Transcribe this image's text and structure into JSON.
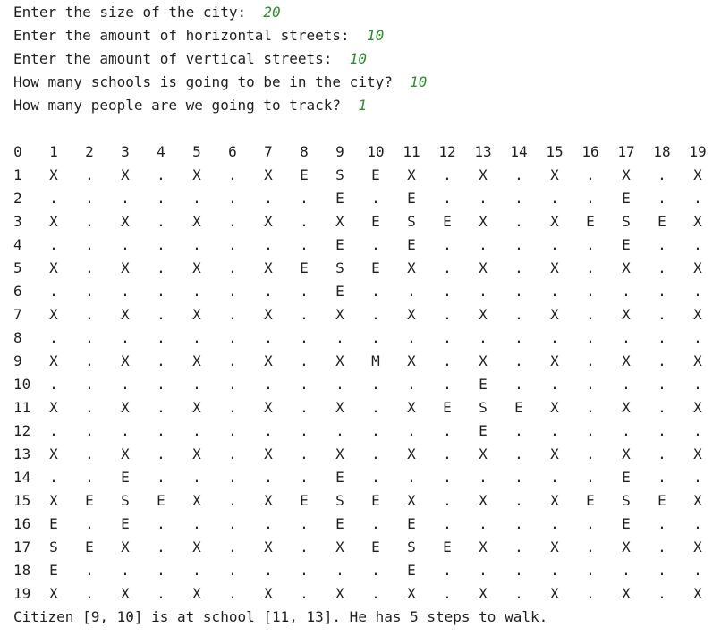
{
  "prompts": [
    {
      "question": "Enter the size of the city:  ",
      "answer": "20"
    },
    {
      "question": "Enter the amount of horizontal streets:  ",
      "answer": "10"
    },
    {
      "question": "Enter the amount of vertical streets:  ",
      "answer": "10"
    },
    {
      "question": "How many schools is going to be in the city?  ",
      "answer": "10"
    },
    {
      "question": "How many people are we going to track?  ",
      "answer": "1"
    }
  ],
  "grid": {
    "header": [
      "0",
      "1",
      "2",
      "3",
      "4",
      "5",
      "6",
      "7",
      "8",
      "9",
      "10",
      "11",
      "12",
      "13",
      "14",
      "15",
      "16",
      "17",
      "18",
      "19"
    ],
    "rows": [
      {
        "label": "1",
        "cells": [
          "X",
          ".",
          "X",
          ".",
          "X",
          ".",
          "X",
          "E",
          "S",
          "E",
          "X",
          ".",
          "X",
          ".",
          "X",
          ".",
          "X",
          ".",
          "X"
        ]
      },
      {
        "label": "2",
        "cells": [
          ".",
          ".",
          ".",
          ".",
          ".",
          ".",
          ".",
          ".",
          "E",
          ".",
          "E",
          ".",
          ".",
          ".",
          ".",
          ".",
          "E",
          ".",
          "."
        ]
      },
      {
        "label": "3",
        "cells": [
          "X",
          ".",
          "X",
          ".",
          "X",
          ".",
          "X",
          ".",
          "X",
          "E",
          "S",
          "E",
          "X",
          ".",
          "X",
          "E",
          "S",
          "E",
          "X"
        ]
      },
      {
        "label": "4",
        "cells": [
          ".",
          ".",
          ".",
          ".",
          ".",
          ".",
          ".",
          ".",
          "E",
          ".",
          "E",
          ".",
          ".",
          ".",
          ".",
          ".",
          "E",
          ".",
          "."
        ]
      },
      {
        "label": "5",
        "cells": [
          "X",
          ".",
          "X",
          ".",
          "X",
          ".",
          "X",
          "E",
          "S",
          "E",
          "X",
          ".",
          "X",
          ".",
          "X",
          ".",
          "X",
          ".",
          "X"
        ]
      },
      {
        "label": "6",
        "cells": [
          ".",
          ".",
          ".",
          ".",
          ".",
          ".",
          ".",
          ".",
          "E",
          ".",
          ".",
          ".",
          ".",
          ".",
          ".",
          ".",
          ".",
          ".",
          "."
        ]
      },
      {
        "label": "7",
        "cells": [
          "X",
          ".",
          "X",
          ".",
          "X",
          ".",
          "X",
          ".",
          "X",
          ".",
          "X",
          ".",
          "X",
          ".",
          "X",
          ".",
          "X",
          ".",
          "X"
        ]
      },
      {
        "label": "8",
        "cells": [
          ".",
          ".",
          ".",
          ".",
          ".",
          ".",
          ".",
          ".",
          ".",
          ".",
          ".",
          ".",
          ".",
          ".",
          ".",
          ".",
          ".",
          ".",
          "."
        ]
      },
      {
        "label": "9",
        "cells": [
          "X",
          ".",
          "X",
          ".",
          "X",
          ".",
          "X",
          ".",
          "X",
          "M",
          "X",
          ".",
          "X",
          ".",
          "X",
          ".",
          "X",
          ".",
          "X"
        ]
      },
      {
        "label": "10",
        "cells": [
          ".",
          ".",
          ".",
          ".",
          ".",
          ".",
          ".",
          ".",
          ".",
          ".",
          ".",
          ".",
          "E",
          ".",
          ".",
          ".",
          ".",
          ".",
          "."
        ]
      },
      {
        "label": "11",
        "cells": [
          "X",
          ".",
          "X",
          ".",
          "X",
          ".",
          "X",
          ".",
          "X",
          ".",
          "X",
          "E",
          "S",
          "E",
          "X",
          ".",
          "X",
          ".",
          "X"
        ]
      },
      {
        "label": "12",
        "cells": [
          ".",
          ".",
          ".",
          ".",
          ".",
          ".",
          ".",
          ".",
          ".",
          ".",
          ".",
          ".",
          "E",
          ".",
          ".",
          ".",
          ".",
          ".",
          "."
        ]
      },
      {
        "label": "13",
        "cells": [
          "X",
          ".",
          "X",
          ".",
          "X",
          ".",
          "X",
          ".",
          "X",
          ".",
          "X",
          ".",
          "X",
          ".",
          "X",
          ".",
          "X",
          ".",
          "X"
        ]
      },
      {
        "label": "14",
        "cells": [
          ".",
          ".",
          "E",
          ".",
          ".",
          ".",
          ".",
          ".",
          "E",
          ".",
          ".",
          ".",
          ".",
          ".",
          ".",
          ".",
          "E",
          ".",
          "."
        ]
      },
      {
        "label": "15",
        "cells": [
          "X",
          "E",
          "S",
          "E",
          "X",
          ".",
          "X",
          "E",
          "S",
          "E",
          "X",
          ".",
          "X",
          ".",
          "X",
          "E",
          "S",
          "E",
          "X"
        ]
      },
      {
        "label": "16",
        "cells": [
          "E",
          ".",
          "E",
          ".",
          ".",
          ".",
          ".",
          ".",
          "E",
          ".",
          "E",
          ".",
          ".",
          ".",
          ".",
          ".",
          "E",
          ".",
          "."
        ]
      },
      {
        "label": "17",
        "cells": [
          "S",
          "E",
          "X",
          ".",
          "X",
          ".",
          "X",
          ".",
          "X",
          "E",
          "S",
          "E",
          "X",
          ".",
          "X",
          ".",
          "X",
          ".",
          "X"
        ]
      },
      {
        "label": "18",
        "cells": [
          "E",
          ".",
          ".",
          ".",
          ".",
          ".",
          ".",
          ".",
          ".",
          ".",
          "E",
          ".",
          ".",
          ".",
          ".",
          ".",
          ".",
          ".",
          "."
        ]
      },
      {
        "label": "19",
        "cells": [
          "X",
          ".",
          "X",
          ".",
          "X",
          ".",
          "X",
          ".",
          "X",
          ".",
          "X",
          ".",
          "X",
          ".",
          "X",
          ".",
          "X",
          ".",
          "X"
        ]
      }
    ]
  },
  "result_text": "Citizen [9, 10] is at school [11, 13]. He has 5 steps to walk.",
  "colors": {
    "answer": "#2e8b2e",
    "text": "#1f1f1f",
    "background": "#ffffff"
  }
}
